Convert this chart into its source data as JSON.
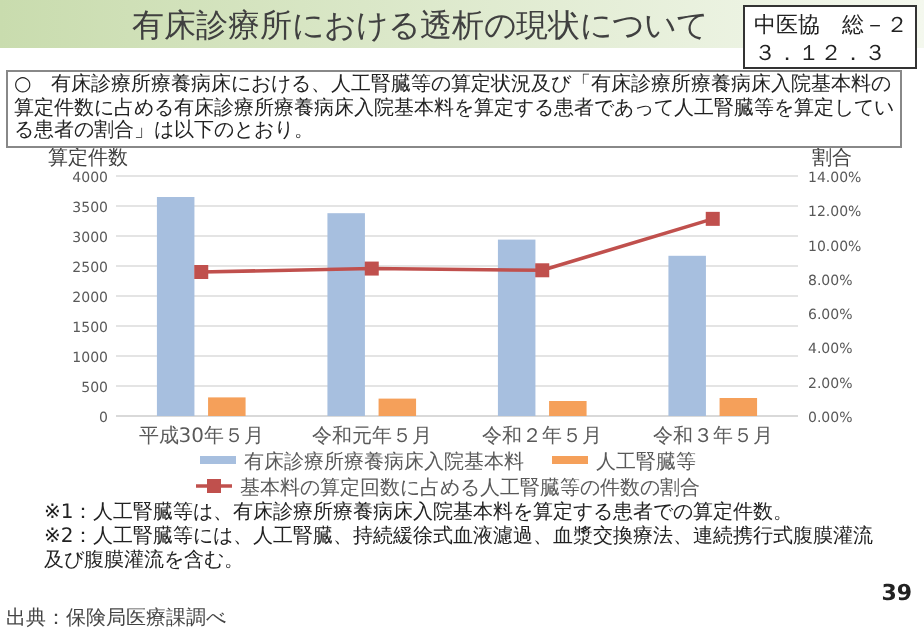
{
  "chart_data": {
    "type": "bar",
    "title": "有床診療所における透析の現状について",
    "subtitle": "○　有床診療所療養病床における、人工腎臓等の算定状況及び「有床診療所療養病床入院基本料の算定件数に占める有床診療所療養病床入院基本料を算定する患者であって人工腎臓等を算定している患者の割合」は以下のとおり。",
    "ylabel": "算定件数",
    "y2label": "割合",
    "categories": [
      "平成30年５月",
      "令和元年５月",
      "令和２年５月",
      "令和３年５月"
    ],
    "series": [
      {
        "name": "有床診療所療養病床入院基本料",
        "color": "#a7bfdf",
        "values": [
          3650,
          3380,
          2940,
          2670
        ]
      },
      {
        "name": "人工腎臓等",
        "color": "#f5a05a",
        "values": [
          310,
          290,
          250,
          300
        ]
      },
      {
        "name": "基本料の算定回数に占める人工腎臓等の件数の割合",
        "type": "line",
        "axis": "y2",
        "color": "#c0504d",
        "marker": "square",
        "values": [
          8.4,
          8.6,
          8.5,
          11.5
        ]
      }
    ],
    "ylim": [
      0,
      4000
    ],
    "yticks": [
      0,
      500,
      1000,
      1500,
      2000,
      2500,
      3000,
      3500,
      4000
    ],
    "y2lim": [
      0,
      14
    ],
    "y2ticks": [
      {
        "value": 0,
        "label": "0.00%"
      },
      {
        "value": 2,
        "label": "2.00%"
      },
      {
        "value": 4,
        "label": "4.00%"
      },
      {
        "value": 6,
        "label": "6.00%"
      },
      {
        "value": 8,
        "label": "8.00%"
      },
      {
        "value": 10,
        "label": "10.00%"
      },
      {
        "value": 12,
        "label": "12.00%"
      },
      {
        "value": 14,
        "label": "14.00%"
      }
    ],
    "grid": "y",
    "legend": "bottom",
    "annotations": [
      "中医協　総－２",
      "３．１２．３",
      "※1：人工腎臓等は、有床診療所療養病床入院基本料を算定する患者での算定件数。",
      "※2：人工腎臓等には、人工腎臓、持続緩徐式血液濾過、血漿交換療法、連続携行式腹膜灌流及び腹膜灌流を含む。",
      "出典：保険局医療課調べ",
      "39"
    ]
  }
}
